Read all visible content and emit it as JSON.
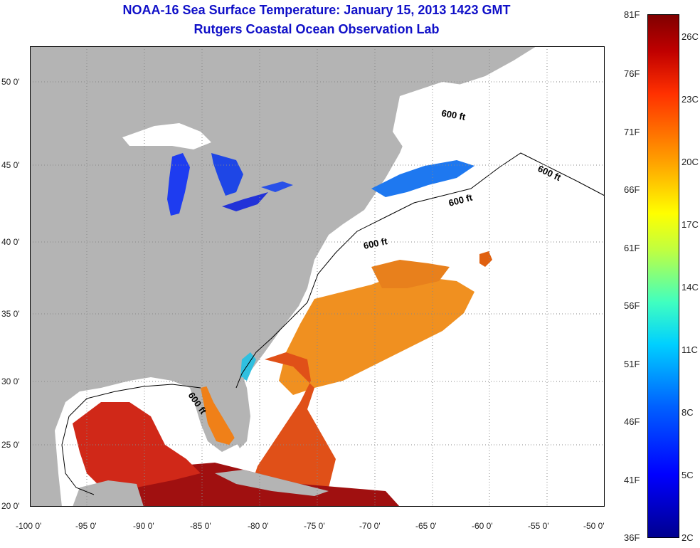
{
  "title": {
    "line1": "NOAA-16 Sea Surface Temperature:  January 15, 2013 1423 GMT",
    "line2": "Rutgers Coastal Ocean Observation Lab"
  },
  "map": {
    "lat_ticks": [
      "50 0'",
      "45 0'",
      "40 0'",
      "35 0'",
      "30 0'",
      "25 0'",
      "20 0'"
    ],
    "lon_ticks": [
      "-100 0'",
      "-95 0'",
      "-90 0'",
      "-85 0'",
      "-80 0'",
      "-75 0'",
      "-70 0'",
      "-65 0'",
      "-60 0'",
      "-55 0'",
      "-50 0'"
    ],
    "contours": [
      "600 ft",
      "600 ft",
      "600 ft",
      "600 ft",
      "600 ft"
    ],
    "colors": {
      "land": "#b4b4b4",
      "water": "#ffffff",
      "grid": "#888888"
    }
  },
  "colorbar": {
    "fahrenheit": [
      "81F",
      "76F",
      "71F",
      "66F",
      "61F",
      "56F",
      "51F",
      "46F",
      "41F",
      "36F"
    ],
    "celsius": [
      "26C",
      "23C",
      "20C",
      "17C",
      "14C",
      "11C",
      "8C",
      "5C",
      "2C"
    ]
  }
}
